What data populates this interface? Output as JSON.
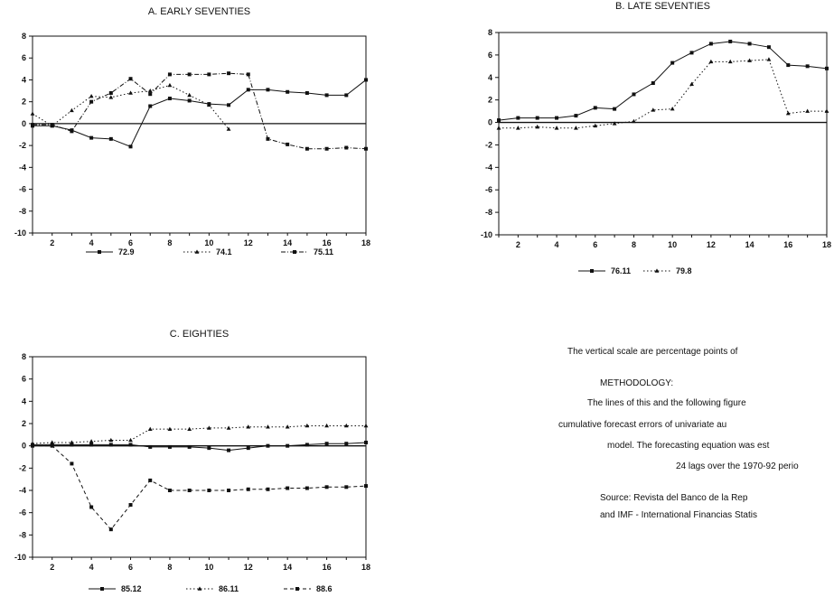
{
  "chart_data": [
    {
      "id": "A",
      "type": "line",
      "title": "A. EARLY SEVENTIES",
      "x_ticks": [
        2,
        4,
        6,
        8,
        10,
        12,
        14,
        16,
        18
      ],
      "y_ticks": [
        8,
        6,
        4,
        2,
        0,
        -2,
        -4,
        -6,
        -8,
        -10
      ],
      "xlim": [
        1,
        18
      ],
      "ylim": [
        -10,
        8
      ],
      "grid": false,
      "legend": "bottom",
      "series": [
        {
          "name": "72.9",
          "style": "solid-square",
          "x": [
            1,
            2,
            3,
            4,
            5,
            6,
            7,
            8,
            9,
            10,
            11,
            12,
            13,
            14,
            15,
            16,
            17,
            18
          ],
          "y": [
            -0.2,
            -0.2,
            -0.6,
            -1.3,
            -1.4,
            -2.1,
            1.6,
            2.3,
            2.1,
            1.8,
            1.7,
            3.1,
            3.1,
            2.9,
            2.8,
            2.6,
            2.6,
            4.0
          ]
        },
        {
          "name": "74.1",
          "style": "dotted-triangle",
          "x": [
            1,
            2,
            3,
            4,
            5,
            6,
            7,
            8,
            9,
            10,
            11
          ],
          "y": [
            0.9,
            -0.2,
            1.2,
            2.5,
            2.4,
            2.8,
            3.0,
            3.5,
            2.6,
            1.7,
            -0.5
          ]
        },
        {
          "name": "75.11",
          "style": "dashdot-square",
          "x": [
            1,
            2,
            3,
            4,
            5,
            6,
            7,
            8,
            9,
            10,
            11,
            12,
            13,
            14,
            15,
            16,
            17,
            18
          ],
          "y": [
            -0.1,
            -0.1,
            -0.7,
            2.0,
            2.8,
            4.1,
            2.7,
            4.5,
            4.5,
            4.5,
            4.6,
            4.5,
            -1.4,
            -1.9,
            -2.3,
            -2.3,
            -2.2,
            -2.3
          ]
        }
      ]
    },
    {
      "id": "B",
      "type": "line",
      "title": "B. LATE SEVENTIES",
      "x_ticks": [
        2,
        4,
        6,
        8,
        10,
        12,
        14,
        16,
        18
      ],
      "y_ticks": [
        8,
        6,
        4,
        2,
        0,
        -2,
        -4,
        -6,
        -8,
        -10
      ],
      "xlim": [
        1,
        18
      ],
      "ylim": [
        -10,
        8
      ],
      "grid": false,
      "legend": "bottom",
      "series": [
        {
          "name": "76.11",
          "style": "solid-square",
          "x": [
            1,
            2,
            3,
            4,
            5,
            6,
            7,
            8,
            9,
            10,
            11,
            12,
            13,
            14,
            15,
            16,
            17,
            18
          ],
          "y": [
            0.2,
            0.4,
            0.4,
            0.4,
            0.6,
            1.3,
            1.2,
            2.5,
            3.5,
            5.3,
            6.2,
            7.0,
            7.2,
            7.0,
            6.7,
            5.1,
            5.0,
            4.8
          ]
        },
        {
          "name": "79.8",
          "style": "dotted-triangle",
          "x": [
            1,
            2,
            3,
            4,
            5,
            6,
            7,
            8,
            9,
            10,
            11,
            12,
            13,
            14,
            15,
            16,
            17,
            18
          ],
          "y": [
            -0.5,
            -0.5,
            -0.4,
            -0.5,
            -0.5,
            -0.3,
            -0.1,
            0.1,
            1.1,
            1.2,
            3.4,
            5.4,
            5.4,
            5.5,
            5.6,
            0.8,
            1.0,
            1.0
          ]
        }
      ]
    },
    {
      "id": "C",
      "type": "line",
      "title": "C. EIGHTIES",
      "x_ticks": [
        2,
        4,
        6,
        8,
        10,
        12,
        14,
        16,
        18
      ],
      "y_ticks": [
        8,
        6,
        4,
        2,
        0,
        -2,
        -4,
        -6,
        -8,
        -10
      ],
      "xlim": [
        1,
        18
      ],
      "ylim": [
        -10,
        8
      ],
      "grid": false,
      "legend": "bottom",
      "series": [
        {
          "name": "85.12",
          "style": "solid-square",
          "x": [
            1,
            2,
            3,
            4,
            5,
            6,
            7,
            8,
            9,
            10,
            11,
            12,
            13,
            14,
            15,
            16,
            17,
            18
          ],
          "y": [
            0.1,
            0.1,
            0.1,
            0.1,
            0.1,
            0.1,
            -0.1,
            -0.1,
            -0.1,
            -0.2,
            -0.4,
            -0.2,
            0.0,
            0.0,
            0.1,
            0.2,
            0.2,
            0.3
          ]
        },
        {
          "name": "86.11",
          "style": "dotted-triangle",
          "x": [
            1,
            2,
            3,
            4,
            5,
            6,
            7,
            8,
            9,
            10,
            11,
            12,
            13,
            14,
            15,
            16,
            17,
            18
          ],
          "y": [
            0.2,
            0.3,
            0.3,
            0.4,
            0.5,
            0.5,
            1.5,
            1.5,
            1.5,
            1.6,
            1.6,
            1.7,
            1.7,
            1.7,
            1.8,
            1.8,
            1.8,
            1.8
          ]
        },
        {
          "name": "88.6",
          "style": "dashed-square",
          "x": [
            1,
            2,
            3,
            4,
            5,
            6,
            7,
            8,
            9,
            10,
            11,
            12,
            13,
            14,
            15,
            16,
            17,
            18
          ],
          "y": [
            0.0,
            0.0,
            -1.6,
            -5.5,
            -7.5,
            -5.3,
            -3.1,
            -4.0,
            -4.0,
            -4.0,
            -4.0,
            -3.9,
            -3.9,
            -3.8,
            -3.8,
            -3.7,
            -3.7,
            -3.6
          ]
        }
      ]
    }
  ],
  "notes": {
    "scale": "The vertical scale are percentage points of",
    "methodology_heading": "METHODOLOGY:",
    "methodology_line1": "The lines of this and the following  figure",
    "methodology_line2": "cumulative forecast errors of univariate au",
    "methodology_line3": "model.  The forecasting equation was est",
    "methodology_line4": "24 lags over the 1970-92 perio",
    "source_line1": "Source:  Revista del Banco de la Rep",
    "source_line2": "and IMF - International Financias Statis"
  }
}
